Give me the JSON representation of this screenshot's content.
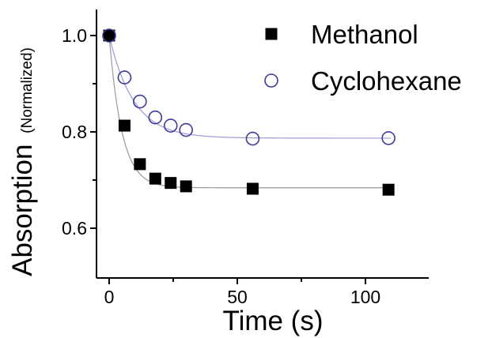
{
  "chart_data": {
    "type": "scatter",
    "xlabel": "Time (s)",
    "ylabel": "Absorption",
    "ylabel_suffix": "(Normalized)",
    "xlim": [
      -3,
      122
    ],
    "ylim": [
      0.5,
      1.05
    ],
    "xticks": [
      0,
      50,
      100
    ],
    "yticks": [
      0.6,
      0.8,
      1.0
    ],
    "xtick_labels": [
      "0",
      "50",
      "100"
    ],
    "ytick_labels": [
      "0.6",
      "0.8",
      "1.0"
    ],
    "grid": false,
    "legend": "top-right",
    "series": [
      {
        "name": "Methanol",
        "marker": "filled-square",
        "color": "#000000",
        "fit_color": "#999999",
        "x": [
          0,
          6,
          12,
          18,
          24,
          30,
          56,
          109
        ],
        "y": [
          1.0,
          0.813,
          0.733,
          0.703,
          0.694,
          0.687,
          0.682,
          0.68
        ],
        "fit": {
          "y_inf": 0.684,
          "amplitude": 0.316,
          "tau": 5.0
        }
      },
      {
        "name": "Cyclohexane",
        "marker": "open-circle",
        "color": "#3c3c96",
        "fit_color": "#9a9ad8",
        "x": [
          0,
          6,
          12,
          18,
          24,
          30,
          56,
          109
        ],
        "y": [
          1.0,
          0.913,
          0.863,
          0.83,
          0.813,
          0.804,
          0.786,
          0.787
        ],
        "fit": {
          "y_inf": 0.787,
          "amplitude": 0.213,
          "tau": 9.5
        }
      }
    ]
  }
}
